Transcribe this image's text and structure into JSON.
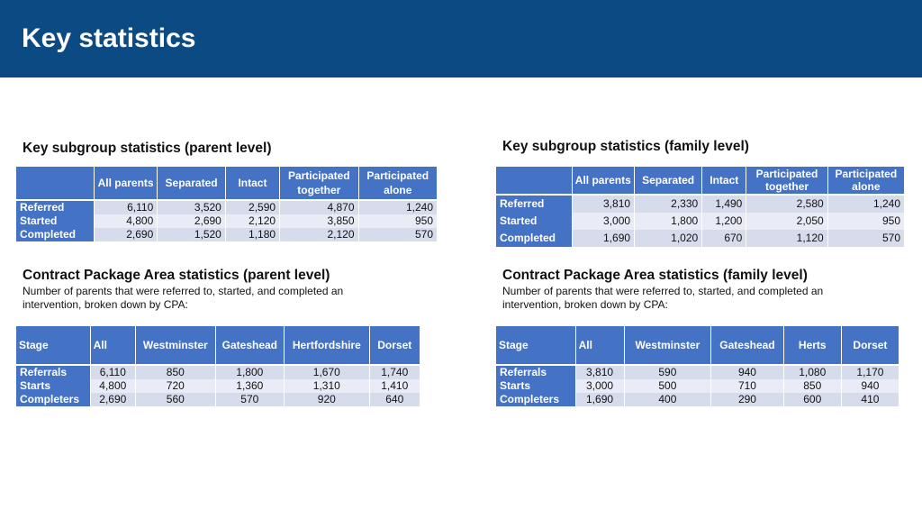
{
  "page": {
    "title": "Key statistics"
  },
  "colors": {
    "header_bg": "#0b4a82",
    "table_header": "#4472c4",
    "row_light": "#e9ecf6",
    "row_dark": "#d6dcec"
  },
  "parent_subgroup": {
    "heading": "Key subgroup statistics (parent level)",
    "columns": [
      "",
      "All parents",
      "Separated",
      "Intact",
      "Participated together",
      "Participated alone"
    ],
    "rows": [
      {
        "label": "Referred",
        "values": [
          "6,110",
          "3,520",
          "2,590",
          "4,870",
          "1,240"
        ]
      },
      {
        "label": "Started",
        "values": [
          "4,800",
          "2,690",
          "2,120",
          "3,850",
          "950"
        ]
      },
      {
        "label": "Completed",
        "values": [
          "2,690",
          "1,520",
          "1,180",
          "2,120",
          "570"
        ]
      }
    ]
  },
  "family_subgroup": {
    "heading": "Key subgroup statistics (family level)",
    "columns": [
      "",
      "All parents",
      "Separated",
      "Intact",
      "Participated together",
      "Participated alone"
    ],
    "rows": [
      {
        "label": "Referred",
        "values": [
          "3,810",
          "2,330",
          "1,490",
          "2,580",
          "1,240"
        ]
      },
      {
        "label": "Started",
        "values": [
          "3,000",
          "1,800",
          "1,200",
          "2,050",
          "950"
        ]
      },
      {
        "label": "Completed",
        "values": [
          "1,690",
          "1,020",
          "670",
          "1,120",
          "570"
        ]
      }
    ]
  },
  "cpa_parent": {
    "heading": "Contract Package Area statistics (parent level)",
    "description": "Number of parents that were referred to, started, and completed an intervention, broken down by CPA:",
    "columns": [
      "Stage",
      "All",
      "Westminster",
      "Gateshead",
      "Hertfordshire",
      "Dorset"
    ],
    "rows": [
      {
        "label": "Referrals",
        "values": [
          "6,110",
          "850",
          "1,800",
          "1,670",
          "1,740"
        ]
      },
      {
        "label": "Starts",
        "values": [
          "4,800",
          "720",
          "1,360",
          "1,310",
          "1,410"
        ]
      },
      {
        "label": "Completers",
        "values": [
          "2,690",
          "560",
          "570",
          "920",
          "640"
        ]
      }
    ]
  },
  "cpa_family": {
    "heading": "Contract Package Area statistics (family level)",
    "description": "Number of parents that were referred to, started, and completed an intervention, broken down by CPA:",
    "columns": [
      "Stage",
      "All",
      "Westminster",
      "Gateshead",
      "Herts",
      "Dorset"
    ],
    "rows": [
      {
        "label": "Referrals",
        "values": [
          "3,810",
          "590",
          "940",
          "1,080",
          "1,170"
        ]
      },
      {
        "label": "Starts",
        "values": [
          "3,000",
          "500",
          "710",
          "850",
          "940"
        ]
      },
      {
        "label": "Completers",
        "values": [
          "1,690",
          "400",
          "290",
          "600",
          "410"
        ]
      }
    ]
  }
}
